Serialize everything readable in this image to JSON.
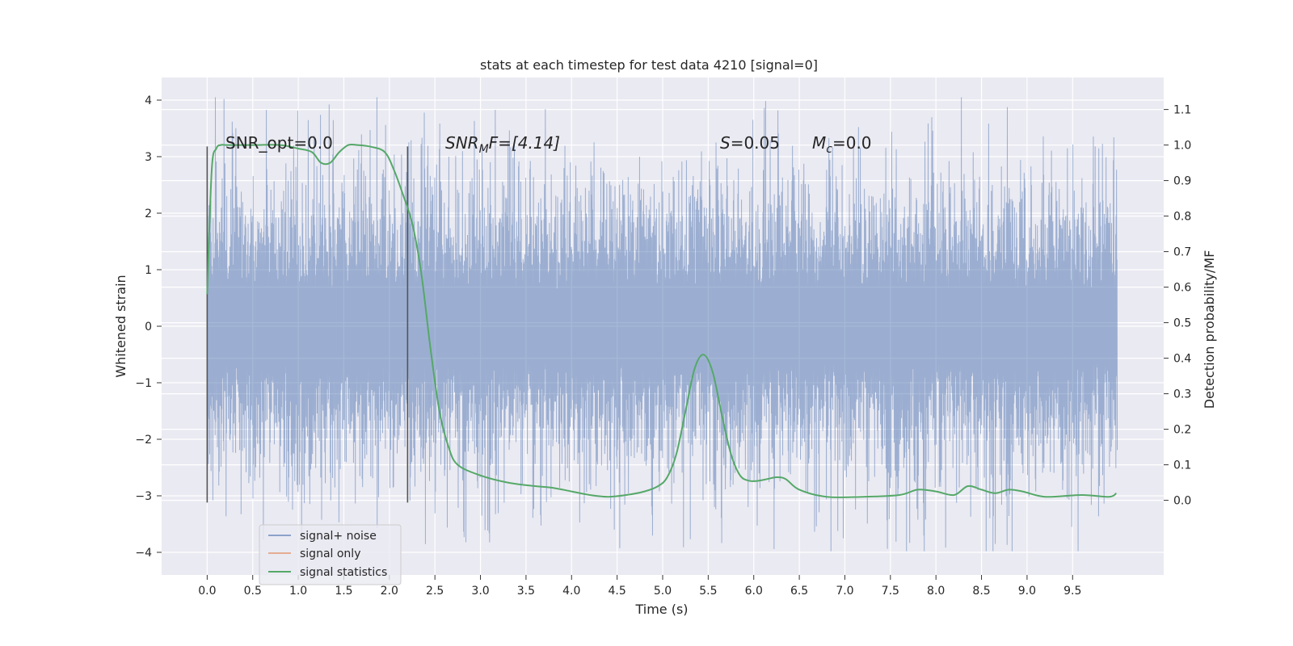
{
  "chart_data": {
    "type": "line",
    "title": "stats at each timestep for test data 4210 [signal=0]",
    "xlabel": "Time (s)",
    "ylabel": "Whitened strain",
    "ylabel_right": "Detection probability/MF",
    "xlim": [
      -0.5,
      10.5
    ],
    "ylim": [
      -4.4,
      4.4
    ],
    "ylim_right": [
      -0.21,
      1.19
    ],
    "x_ticks": [
      "0.0",
      "0.5",
      "1.0",
      "1.5",
      "2.0",
      "2.5",
      "3.0",
      "3.5",
      "4.0",
      "4.5",
      "5.0",
      "5.5",
      "6.0",
      "6.5",
      "7.0",
      "7.5",
      "8.0",
      "8.5",
      "9.0",
      "9.5"
    ],
    "y_ticks": [
      "4",
      "3",
      "2",
      "1",
      "0",
      "−1",
      "−2",
      "−3",
      "−4"
    ],
    "y_ticks_right": [
      "1.1",
      "1.0",
      "0.9",
      "0.8",
      "0.7",
      "0.6",
      "0.5",
      "0.4",
      "0.3",
      "0.2",
      "0.1",
      "0.0"
    ],
    "grid": true,
    "legend_position": "lower-left",
    "colors": {
      "background": "#eaeaf2",
      "grid": "#ffffff",
      "signal_noise": "#4c72b0",
      "signal_only": "#dd8452",
      "signal_statistics": "#55a868",
      "markers": "#555555"
    },
    "series": [
      {
        "name": "signal+ noise",
        "style": "dense noise trace",
        "x_range": [
          0.0,
          9.99
        ],
        "typical_envelope": [
          -1.9,
          1.9
        ],
        "approx_max": 4.05,
        "approx_min": -3.98
      },
      {
        "name": "signal only",
        "values": []
      },
      {
        "name": "signal statistics",
        "axis": "right",
        "x": [
          0.0,
          0.05,
          0.1,
          0.15,
          0.2,
          0.3,
          0.5,
          0.8,
          1.0,
          1.15,
          1.25,
          1.35,
          1.45,
          1.55,
          1.65,
          1.8,
          1.95,
          2.05,
          2.15,
          2.25,
          2.35,
          2.45,
          2.55,
          2.65,
          2.75,
          3.0,
          3.3,
          3.6,
          3.8,
          4.0,
          4.2,
          4.4,
          4.6,
          4.8,
          4.95,
          5.05,
          5.15,
          5.25,
          5.35,
          5.45,
          5.55,
          5.65,
          5.75,
          5.85,
          5.95,
          6.05,
          6.15,
          6.25,
          6.35,
          6.5,
          6.8,
          7.2,
          7.6,
          7.8,
          8.0,
          8.2,
          8.35,
          8.5,
          8.65,
          8.8,
          8.95,
          9.2,
          9.6,
          9.9,
          9.98
        ],
        "values": [
          0.58,
          0.93,
          0.99,
          1.0,
          1.0,
          1.0,
          1.0,
          1.0,
          0.99,
          0.98,
          0.95,
          0.95,
          0.98,
          1.0,
          1.0,
          0.995,
          0.98,
          0.93,
          0.86,
          0.78,
          0.64,
          0.43,
          0.25,
          0.15,
          0.1,
          0.07,
          0.05,
          0.04,
          0.035,
          0.025,
          0.015,
          0.01,
          0.015,
          0.025,
          0.04,
          0.065,
          0.13,
          0.25,
          0.37,
          0.41,
          0.36,
          0.24,
          0.13,
          0.07,
          0.055,
          0.055,
          0.06,
          0.065,
          0.06,
          0.03,
          0.01,
          0.01,
          0.015,
          0.03,
          0.025,
          0.015,
          0.04,
          0.03,
          0.02,
          0.03,
          0.025,
          0.01,
          0.015,
          0.01,
          0.02
        ]
      }
    ],
    "vertical_markers": [
      0.0,
      2.2
    ],
    "annotations": {
      "snr_opt": "SNR_opt=0.0",
      "snr_mf_var": "SNR",
      "snr_mf_sub": "M",
      "snr_mf_rest": "F=[4.14]",
      "s_var": "S",
      "s_rest": "=0.05",
      "mc_var": "M",
      "mc_sub": "c",
      "mc_rest": "=0.0"
    }
  }
}
